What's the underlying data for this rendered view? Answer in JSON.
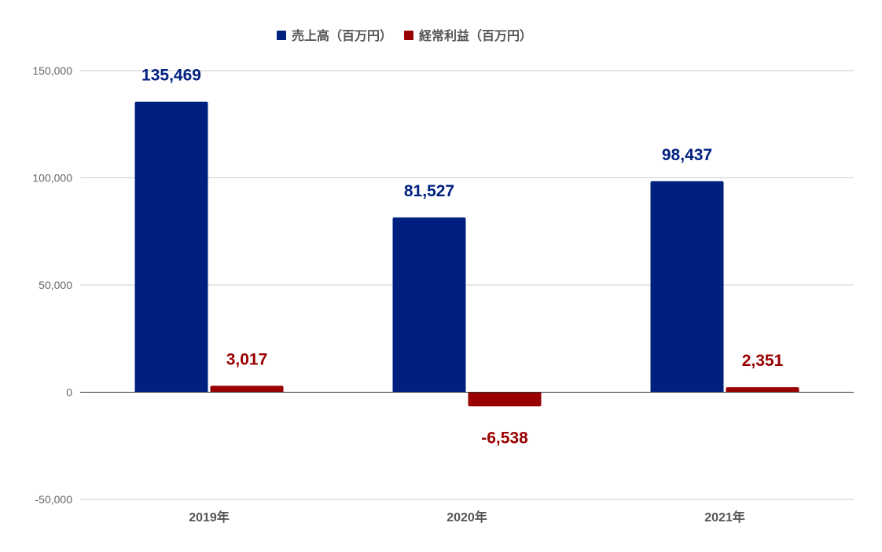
{
  "chart_data": {
    "type": "bar",
    "categories": [
      "2019年",
      "2020年",
      "2021年"
    ],
    "series": [
      {
        "name": "売上高（百万円）",
        "color": "#002080",
        "values": [
          135469,
          81527,
          98437
        ],
        "labels": [
          "135,469",
          "81,527",
          "98,437"
        ]
      },
      {
        "name": "経常利益（百万円）",
        "color": "#990000",
        "values": [
          3017,
          -6538,
          2351
        ],
        "labels": [
          "3,017",
          "-6,538",
          "2,351"
        ]
      }
    ],
    "yticks": [
      150000,
      100000,
      50000,
      0,
      -50000
    ],
    "ytick_labels": [
      "150,000",
      "100,000",
      "50,000",
      "0",
      "-50,000"
    ],
    "ylim": [
      -50000,
      150000
    ],
    "grid": true,
    "legend_position": "top"
  }
}
